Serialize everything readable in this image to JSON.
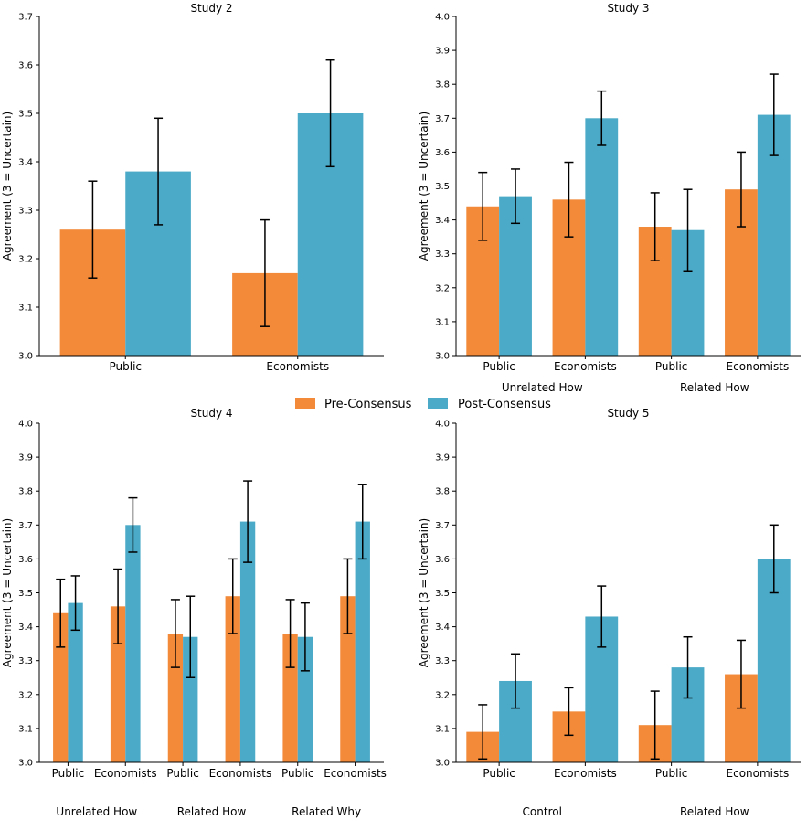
{
  "legend": {
    "pre_label": "Pre-Consensus",
    "post_label": "Post-Consensus",
    "pre_color": "#F28A3A",
    "post_color": "#4BAAC8"
  },
  "chart_data": [
    {
      "type": "bar",
      "title": "Study 2",
      "ylabel": "Agreement (3 = Uncertain)",
      "ylim": [
        3.0,
        3.7
      ],
      "yticks": [
        "3.0",
        "3.1",
        "3.2",
        "3.3",
        "3.4",
        "3.5",
        "3.6",
        "3.7"
      ],
      "categories": [
        "Public",
        "Economists"
      ],
      "groups": [],
      "series": [
        {
          "name": "Pre-Consensus",
          "values": [
            3.26,
            3.17
          ],
          "err_low": [
            3.16,
            3.06
          ],
          "err_high": [
            3.36,
            3.28
          ]
        },
        {
          "name": "Post-Consensus",
          "values": [
            3.38,
            3.5
          ],
          "err_low": [
            3.27,
            3.39
          ],
          "err_high": [
            3.49,
            3.61
          ]
        }
      ]
    },
    {
      "type": "bar",
      "title": "Study 3",
      "ylabel": "Agreement (3 = Uncertain)",
      "ylim": [
        3.0,
        4.0
      ],
      "yticks": [
        "3.0",
        "3.1",
        "3.2",
        "3.3",
        "3.4",
        "3.5",
        "3.6",
        "3.7",
        "3.8",
        "3.9",
        "4.0"
      ],
      "categories": [
        "Public",
        "Economists",
        "Public",
        "Economists"
      ],
      "groups": [
        "Unrelated How",
        "Related How"
      ],
      "series": [
        {
          "name": "Pre-Consensus",
          "values": [
            3.44,
            3.46,
            3.38,
            3.49
          ],
          "err_low": [
            3.34,
            3.35,
            3.28,
            3.38
          ],
          "err_high": [
            3.54,
            3.57,
            3.48,
            3.6
          ]
        },
        {
          "name": "Post-Consensus",
          "values": [
            3.47,
            3.7,
            3.37,
            3.71
          ],
          "err_low": [
            3.39,
            3.62,
            3.25,
            3.59
          ],
          "err_high": [
            3.55,
            3.78,
            3.49,
            3.83
          ]
        }
      ]
    },
    {
      "type": "bar",
      "title": "Study 4",
      "ylabel": "Agreement (3 = Uncertain)",
      "ylim": [
        3.0,
        4.0
      ],
      "yticks": [
        "3.0",
        "3.1",
        "3.2",
        "3.3",
        "3.4",
        "3.5",
        "3.6",
        "3.7",
        "3.8",
        "3.9",
        "4.0"
      ],
      "categories": [
        "Public",
        "Economists",
        "Public",
        "Economists",
        "Public",
        "Economists"
      ],
      "groups": [
        "Unrelated How",
        "Related How",
        "Related Why"
      ],
      "series": [
        {
          "name": "Pre-Consensus",
          "values": [
            3.44,
            3.46,
            3.38,
            3.49,
            3.38,
            3.49
          ],
          "err_low": [
            3.34,
            3.35,
            3.28,
            3.38,
            3.28,
            3.38
          ],
          "err_high": [
            3.54,
            3.57,
            3.48,
            3.6,
            3.48,
            3.6
          ]
        },
        {
          "name": "Post-Consensus",
          "values": [
            3.47,
            3.7,
            3.37,
            3.71,
            3.37,
            3.71
          ],
          "err_low": [
            3.39,
            3.62,
            3.25,
            3.59,
            3.27,
            3.6
          ],
          "err_high": [
            3.55,
            3.78,
            3.49,
            3.83,
            3.47,
            3.82
          ]
        }
      ]
    },
    {
      "type": "bar",
      "title": "Study 5",
      "ylabel": "Agreement (3 = Uncertain)",
      "ylim": [
        3.0,
        4.0
      ],
      "yticks": [
        "3.0",
        "3.1",
        "3.2",
        "3.3",
        "3.4",
        "3.5",
        "3.6",
        "3.7",
        "3.8",
        "3.9",
        "4.0"
      ],
      "categories": [
        "Public",
        "Economists",
        "Public",
        "Economists"
      ],
      "groups": [
        "Control",
        "Related How"
      ],
      "series": [
        {
          "name": "Pre-Consensus",
          "values": [
            3.09,
            3.15,
            3.11,
            3.26
          ],
          "err_low": [
            3.01,
            3.08,
            3.01,
            3.16
          ],
          "err_high": [
            3.17,
            3.22,
            3.21,
            3.36
          ]
        },
        {
          "name": "Post-Consensus",
          "values": [
            3.24,
            3.43,
            3.28,
            3.6
          ],
          "err_low": [
            3.16,
            3.34,
            3.19,
            3.5
          ],
          "err_high": [
            3.32,
            3.52,
            3.37,
            3.7
          ]
        }
      ]
    }
  ]
}
